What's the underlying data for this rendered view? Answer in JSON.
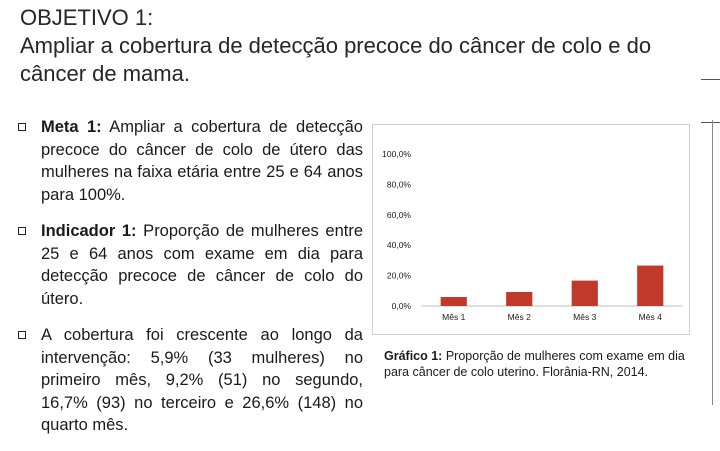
{
  "slide": {
    "title_line1": "OBJETIVO 1:",
    "title_line2": "Ampliar a cobertura de detecção precoce do câncer de colo e do câncer de mama."
  },
  "bullets": [
    {
      "bold": "Meta 1:",
      "text": " Ampliar a cobertura de detecção precoce do câncer de colo de útero das mulheres na faixa etária entre 25 e 64 anos para 100%."
    },
    {
      "bold": "Indicador 1:",
      "text": " Proporção de mulheres entre 25 e 64 anos com exame em dia para detecção precoce de câncer de colo do útero."
    },
    {
      "bold": "",
      "text": "A cobertura foi crescente ao longo da intervenção: 5,9% (33 mulheres) no primeiro mês, 9,2% (51) no segundo, 16,7% (93) no terceiro e 26,6% (148) no quarto mês."
    }
  ],
  "caption": {
    "label": "Gráfico 1:",
    "text": " Proporção de mulheres com exame em dia para câncer de colo uterino. Florânia-RN, 2014."
  },
  "colors": {
    "bar": "#c0392b",
    "grid": "#d9d9d9",
    "text": "#1a1a1a"
  },
  "chart_data": {
    "type": "bar",
    "categories": [
      "Mês 1",
      "Mês 2",
      "Mês 3",
      "Mês 4"
    ],
    "values": [
      5.9,
      9.2,
      16.7,
      26.6
    ],
    "ylim": [
      0,
      100
    ],
    "yticks": [
      "0,0%",
      "20,0%",
      "40,0%",
      "60,0%",
      "80,0%",
      "100,0%"
    ],
    "title": "",
    "xlabel": "",
    "ylabel": "",
    "grid": false,
    "legend": "none"
  }
}
